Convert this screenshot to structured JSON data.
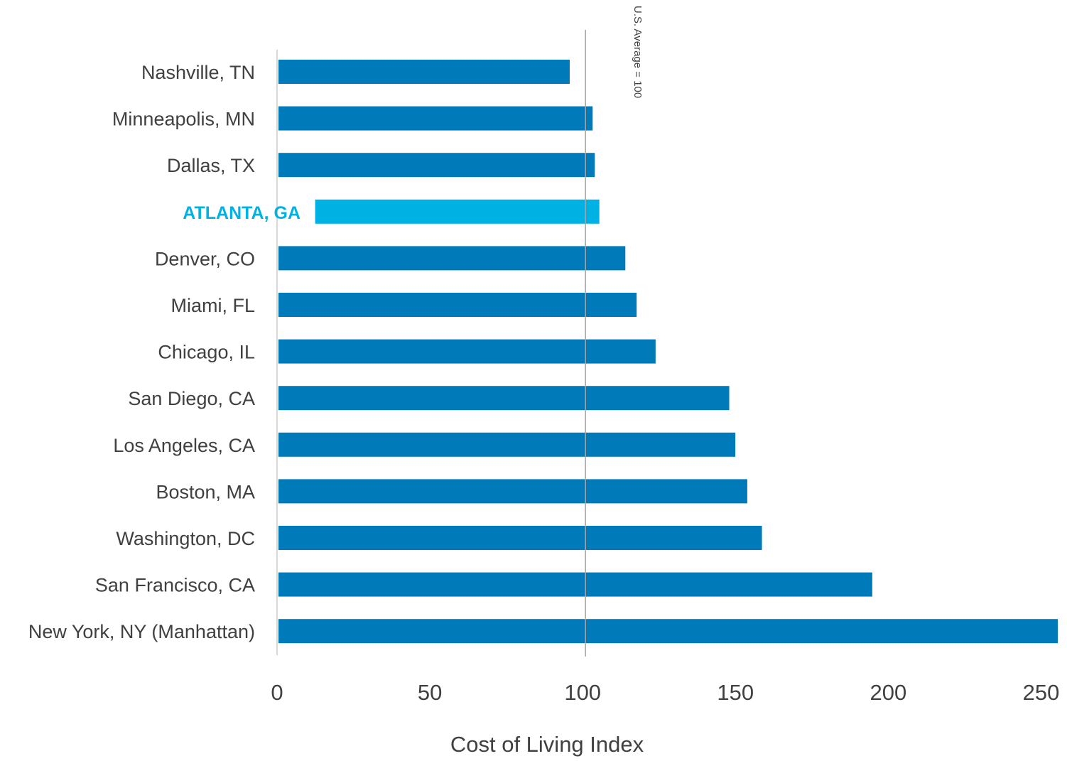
{
  "chart_data": {
    "type": "bar",
    "orientation": "horizontal",
    "title": "",
    "xlabel": "Cost of Living Index",
    "ylabel": "",
    "xlim": [
      0,
      255
    ],
    "xticks": [
      0,
      50,
      100,
      150,
      200,
      250
    ],
    "grid": false,
    "reference_line": {
      "value": 100,
      "label": "U.S. Average = 100"
    },
    "categories": [
      "Nashville, TN",
      "Minneapolis, MN",
      "Dallas, TX",
      "ATLANTA, GA",
      "Denver, CO",
      "Miami, FL",
      "Chicago, IL",
      "San Diego, CA",
      "Los Angeles, CA",
      "Boston, MA",
      "Washington, DC",
      "San Francisco, CA",
      "New York, NY (Manhattan)"
    ],
    "values": [
      95.3,
      102.8,
      103.5,
      105.0,
      113.5,
      117.2,
      123.4,
      147.5,
      149.5,
      153.4,
      158.2,
      194.3,
      255.0
    ],
    "highlight": {
      "category": "ATLANTA, GA",
      "color": "#00B2E3"
    },
    "colors": {
      "bar": "#007AB8",
      "highlight": "#00B2E3",
      "reference_line": "#A6A6A6",
      "axis": "#D9D9D9",
      "label_text": "#404040"
    }
  }
}
